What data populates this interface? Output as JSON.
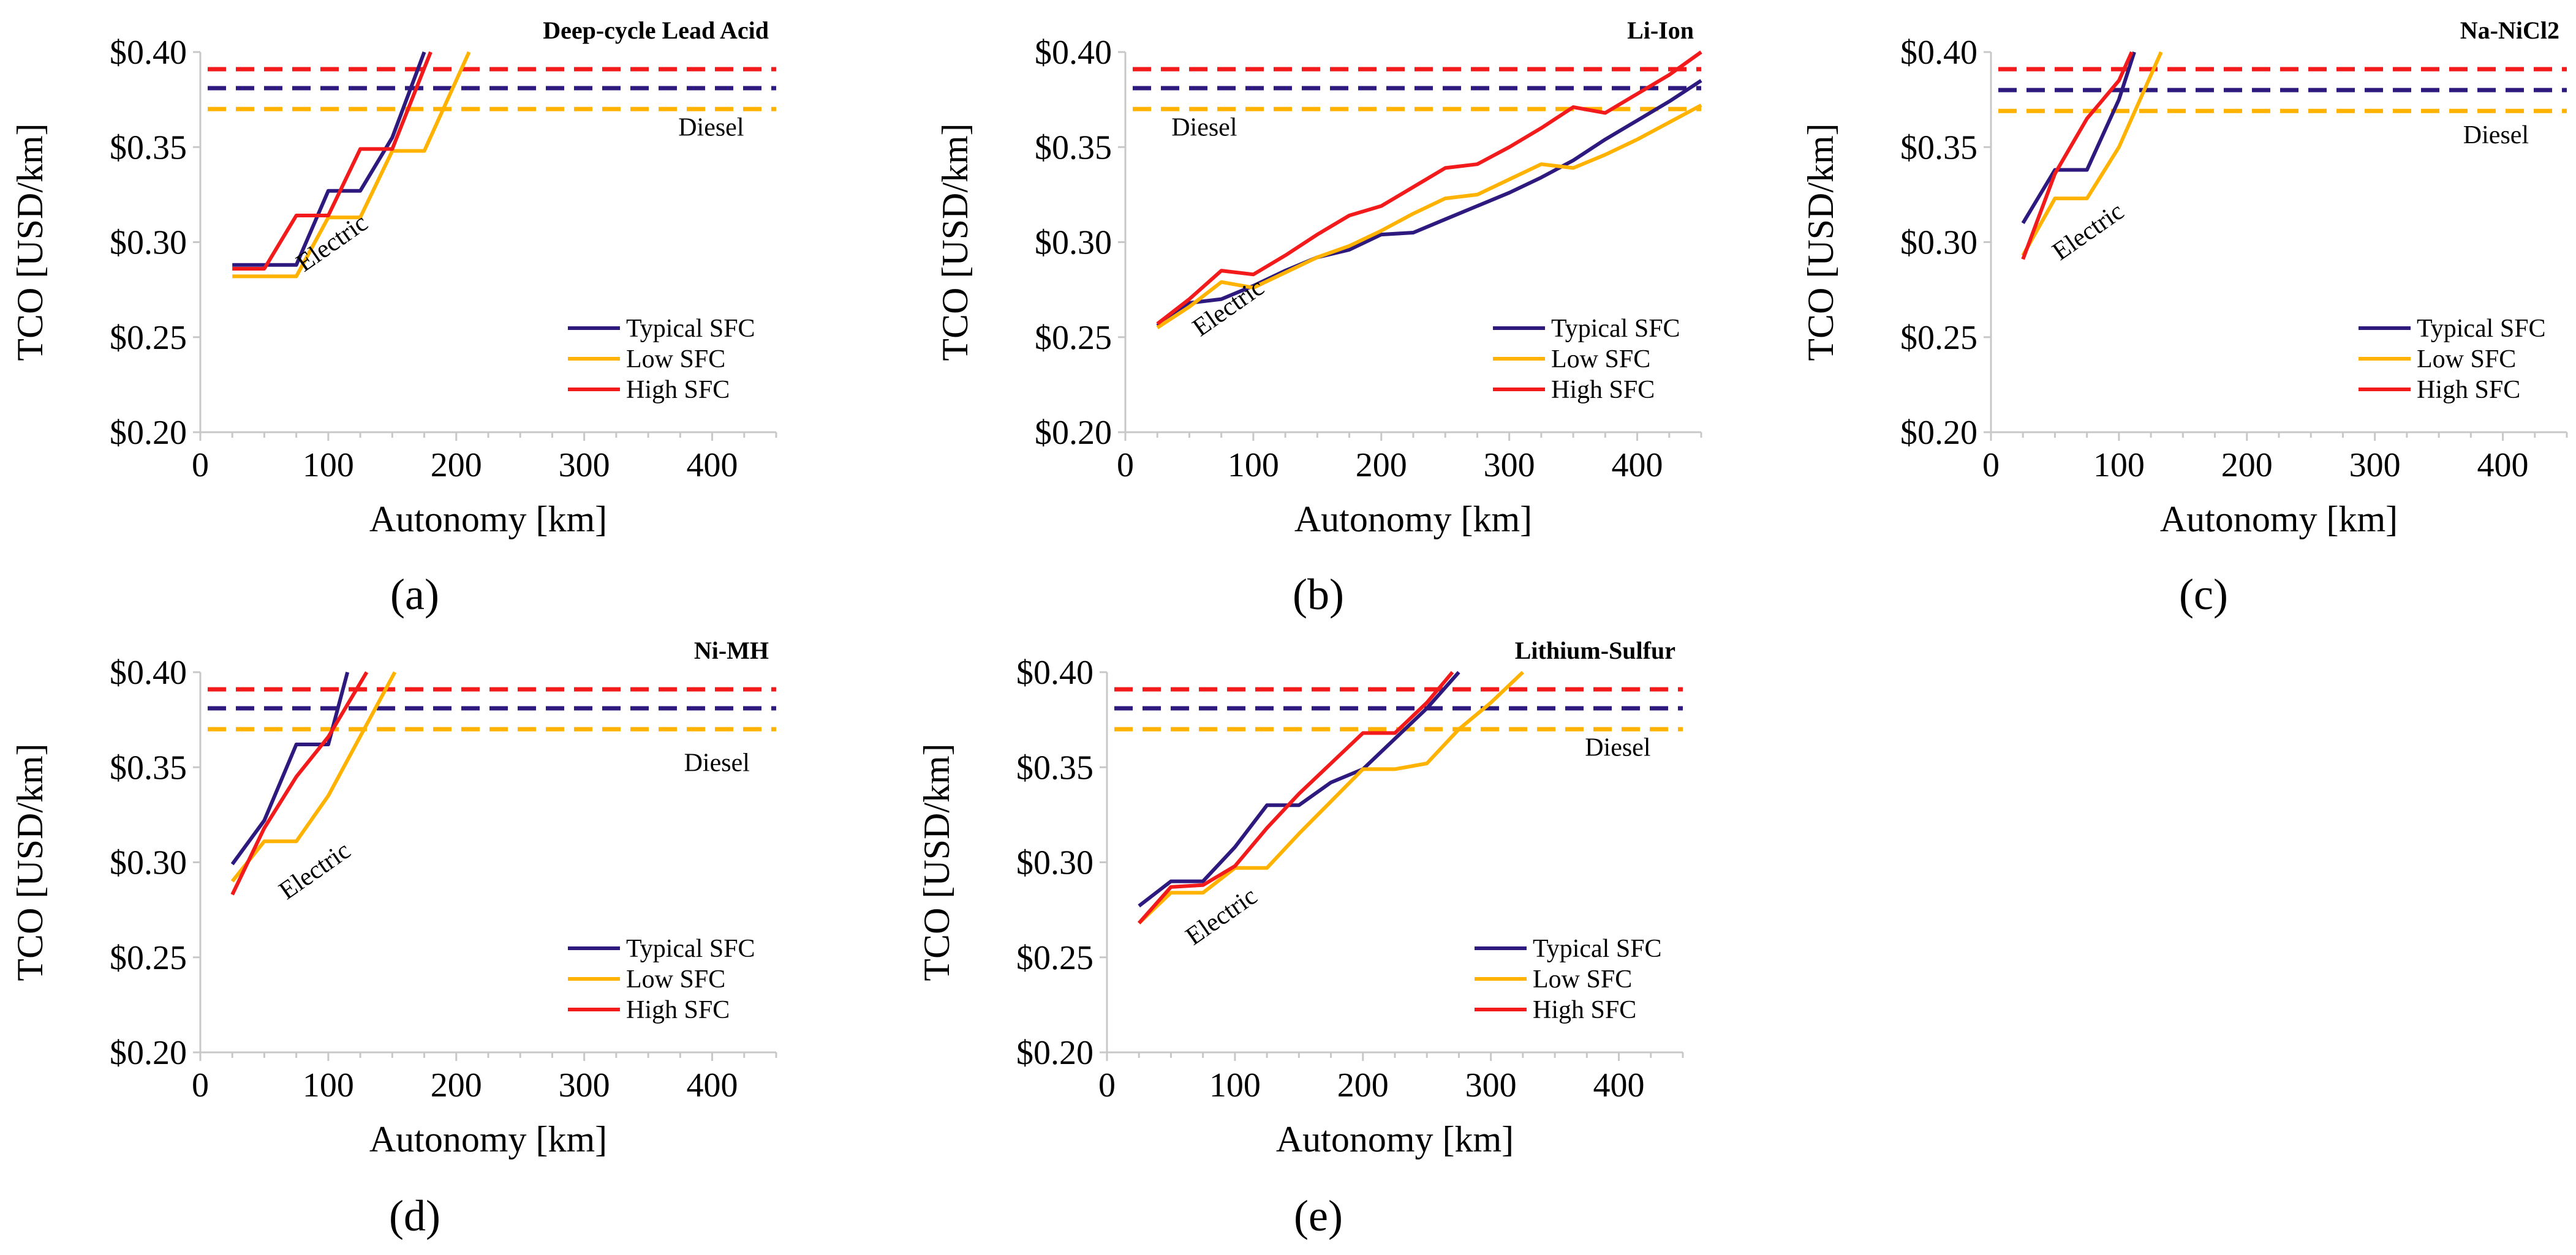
{
  "colors": {
    "typical": "#2e1a7e",
    "low": "#ffb300",
    "high": "#f21a1a",
    "axis": "#c8c8c8",
    "text": "#000000"
  },
  "legend": [
    "Typical SFC",
    "Low SFC",
    "High SFC"
  ],
  "chart_data": [
    {
      "panel": "(a)",
      "type": "line",
      "title": "Deep-cycle Lead Acid",
      "xlabel": "Autonomy [km]",
      "ylabel": "TCO [USD/km]",
      "xlim": [
        0,
        450
      ],
      "ylim": [
        0.2,
        0.4
      ],
      "xticks": [
        0,
        100,
        200,
        300,
        400
      ],
      "yticks": [
        "$0.20",
        "$0.25",
        "$0.30",
        "$0.35",
        "$0.40"
      ],
      "annotations": {
        "diesel": "Diesel",
        "electric": "Electric"
      },
      "diesel": {
        "typical": 0.381,
        "low": 0.37,
        "high": 0.391
      },
      "series": [
        {
          "name": "Typical SFC",
          "key": "typical",
          "points": [
            [
              25,
              0.288
            ],
            [
              50,
              0.288
            ],
            [
              75,
              0.288
            ],
            [
              100,
              0.327
            ],
            [
              125,
              0.327
            ],
            [
              150,
              0.355
            ],
            [
              175,
              0.4
            ]
          ]
        },
        {
          "name": "Low SFC",
          "key": "low",
          "points": [
            [
              25,
              0.282
            ],
            [
              50,
              0.282
            ],
            [
              75,
              0.282
            ],
            [
              100,
              0.313
            ],
            [
              125,
              0.313
            ],
            [
              150,
              0.348
            ],
            [
              175,
              0.348
            ],
            [
              210,
              0.4
            ]
          ]
        },
        {
          "name": "High SFC",
          "key": "high",
          "points": [
            [
              25,
              0.286
            ],
            [
              50,
              0.286
            ],
            [
              75,
              0.314
            ],
            [
              100,
              0.314
            ],
            [
              125,
              0.349
            ],
            [
              150,
              0.349
            ],
            [
              180,
              0.4
            ]
          ]
        }
      ]
    },
    {
      "panel": "(b)",
      "type": "line",
      "title": "Li-Ion",
      "xlabel": "Autonomy [km]",
      "ylabel": "TCO [USD/km]",
      "xlim": [
        0,
        450
      ],
      "ylim": [
        0.2,
        0.4
      ],
      "xticks": [
        0,
        100,
        200,
        300,
        400
      ],
      "yticks": [
        "$0.20",
        "$0.25",
        "$0.30",
        "$0.35",
        "$0.40"
      ],
      "annotations": {
        "diesel": "Diesel",
        "electric": "Electric"
      },
      "diesel": {
        "typical": 0.381,
        "low": 0.37,
        "high": 0.391
      },
      "series": [
        {
          "name": "Typical SFC",
          "key": "typical",
          "points": [
            [
              25,
              0.256
            ],
            [
              50,
              0.268
            ],
            [
              75,
              0.27
            ],
            [
              100,
              0.277
            ],
            [
              125,
              0.285
            ],
            [
              150,
              0.292
            ],
            [
              175,
              0.296
            ],
            [
              200,
              0.304
            ],
            [
              225,
              0.305
            ],
            [
              250,
              0.312
            ],
            [
              275,
              0.319
            ],
            [
              300,
              0.326
            ],
            [
              325,
              0.334
            ],
            [
              350,
              0.343
            ],
            [
              375,
              0.354
            ],
            [
              400,
              0.364
            ],
            [
              425,
              0.374
            ],
            [
              450,
              0.385
            ]
          ]
        },
        {
          "name": "Low SFC",
          "key": "low",
          "points": [
            [
              25,
              0.255
            ],
            [
              50,
              0.266
            ],
            [
              75,
              0.279
            ],
            [
              100,
              0.276
            ],
            [
              125,
              0.284
            ],
            [
              150,
              0.292
            ],
            [
              175,
              0.298
            ],
            [
              200,
              0.306
            ],
            [
              225,
              0.315
            ],
            [
              250,
              0.323
            ],
            [
              275,
              0.325
            ],
            [
              300,
              0.333
            ],
            [
              325,
              0.341
            ],
            [
              350,
              0.339
            ],
            [
              375,
              0.346
            ],
            [
              400,
              0.354
            ],
            [
              425,
              0.363
            ],
            [
              450,
              0.372
            ]
          ]
        },
        {
          "name": "High SFC",
          "key": "high",
          "points": [
            [
              25,
              0.257
            ],
            [
              50,
              0.27
            ],
            [
              75,
              0.285
            ],
            [
              100,
              0.283
            ],
            [
              125,
              0.293
            ],
            [
              150,
              0.304
            ],
            [
              175,
              0.314
            ],
            [
              200,
              0.319
            ],
            [
              225,
              0.329
            ],
            [
              250,
              0.339
            ],
            [
              275,
              0.341
            ],
            [
              300,
              0.35
            ],
            [
              325,
              0.36
            ],
            [
              350,
              0.371
            ],
            [
              375,
              0.368
            ],
            [
              400,
              0.378
            ],
            [
              425,
              0.388
            ],
            [
              450,
              0.4
            ]
          ]
        }
      ]
    },
    {
      "panel": "(c)",
      "type": "line",
      "title": "Na-NiCl2",
      "xlabel": "Autonomy [km]",
      "ylabel": "TCO [USD/km]",
      "xlim": [
        0,
        450
      ],
      "ylim": [
        0.2,
        0.4
      ],
      "xticks": [
        0,
        100,
        200,
        300,
        400
      ],
      "yticks": [
        "$0.20",
        "$0.25",
        "$0.30",
        "$0.35",
        "$0.40"
      ],
      "annotations": {
        "diesel": "Diesel",
        "electric": "Electric"
      },
      "diesel": {
        "typical": 0.38,
        "low": 0.369,
        "high": 0.391
      },
      "series": [
        {
          "name": "Typical SFC",
          "key": "typical",
          "points": [
            [
              25,
              0.31
            ],
            [
              50,
              0.338
            ],
            [
              75,
              0.338
            ],
            [
              100,
              0.375
            ],
            [
              112,
              0.4
            ]
          ]
        },
        {
          "name": "Low SFC",
          "key": "low",
          "points": [
            [
              25,
              0.293
            ],
            [
              50,
              0.323
            ],
            [
              75,
              0.323
            ],
            [
              100,
              0.35
            ],
            [
              133,
              0.4
            ]
          ]
        },
        {
          "name": "High SFC",
          "key": "high",
          "points": [
            [
              25,
              0.291
            ],
            [
              50,
              0.336
            ],
            [
              75,
              0.365
            ],
            [
              100,
              0.385
            ],
            [
              110,
              0.4
            ]
          ]
        }
      ]
    },
    {
      "panel": "(d)",
      "type": "line",
      "title": "Ni-MH",
      "xlabel": "Autonomy [km]",
      "ylabel": "TCO [USD/km]",
      "xlim": [
        0,
        450
      ],
      "ylim": [
        0.2,
        0.4
      ],
      "xticks": [
        0,
        100,
        200,
        300,
        400
      ],
      "yticks": [
        "$0.20",
        "$0.25",
        "$0.30",
        "$0.35",
        "$0.40"
      ],
      "annotations": {
        "diesel": "Diesel",
        "electric": "Electric"
      },
      "diesel": {
        "typical": 0.381,
        "low": 0.37,
        "high": 0.391
      },
      "series": [
        {
          "name": "Typical SFC",
          "key": "typical",
          "points": [
            [
              25,
              0.299
            ],
            [
              50,
              0.322
            ],
            [
              75,
              0.362
            ],
            [
              100,
              0.362
            ],
            [
              115,
              0.4
            ]
          ]
        },
        {
          "name": "Low SFC",
          "key": "low",
          "points": [
            [
              25,
              0.29
            ],
            [
              50,
              0.311
            ],
            [
              75,
              0.311
            ],
            [
              100,
              0.335
            ],
            [
              152,
              0.4
            ]
          ]
        },
        {
          "name": "High SFC",
          "key": "high",
          "points": [
            [
              25,
              0.283
            ],
            [
              50,
              0.318
            ],
            [
              75,
              0.345
            ],
            [
              100,
              0.366
            ],
            [
              130,
              0.4
            ]
          ]
        }
      ]
    },
    {
      "panel": "(e)",
      "type": "line",
      "title": "Lithium-Sulfur",
      "xlabel": "Autonomy [km]",
      "ylabel": "TCO [USD/km]",
      "xlim": [
        0,
        450
      ],
      "ylim": [
        0.2,
        0.4
      ],
      "xticks": [
        0,
        100,
        200,
        300,
        400
      ],
      "yticks": [
        "$0.20",
        "$0.25",
        "$0.30",
        "$0.35",
        "$0.40"
      ],
      "annotations": {
        "diesel": "Diesel",
        "electric": "Electric"
      },
      "diesel": {
        "typical": 0.381,
        "low": 0.37,
        "high": 0.391
      },
      "series": [
        {
          "name": "Typical SFC",
          "key": "typical",
          "points": [
            [
              25,
              0.277
            ],
            [
              50,
              0.29
            ],
            [
              75,
              0.29
            ],
            [
              100,
              0.308
            ],
            [
              125,
              0.33
            ],
            [
              150,
              0.33
            ],
            [
              175,
              0.342
            ],
            [
              200,
              0.349
            ],
            [
              225,
              0.365
            ],
            [
              250,
              0.381
            ],
            [
              275,
              0.4
            ]
          ]
        },
        {
          "name": "Low SFC",
          "key": "low",
          "points": [
            [
              25,
              0.268
            ],
            [
              50,
              0.284
            ],
            [
              75,
              0.284
            ],
            [
              100,
              0.297
            ],
            [
              125,
              0.297
            ],
            [
              150,
              0.315
            ],
            [
              175,
              0.332
            ],
            [
              200,
              0.349
            ],
            [
              225,
              0.349
            ],
            [
              250,
              0.352
            ],
            [
              275,
              0.37
            ],
            [
              300,
              0.384
            ],
            [
              325,
              0.4
            ]
          ]
        },
        {
          "name": "High SFC",
          "key": "high",
          "points": [
            [
              25,
              0.268
            ],
            [
              50,
              0.287
            ],
            [
              75,
              0.288
            ],
            [
              100,
              0.298
            ],
            [
              125,
              0.318
            ],
            [
              150,
              0.336
            ],
            [
              175,
              0.352
            ],
            [
              200,
              0.368
            ],
            [
              225,
              0.368
            ],
            [
              250,
              0.384
            ],
            [
              270,
              0.4
            ]
          ]
        }
      ]
    }
  ]
}
